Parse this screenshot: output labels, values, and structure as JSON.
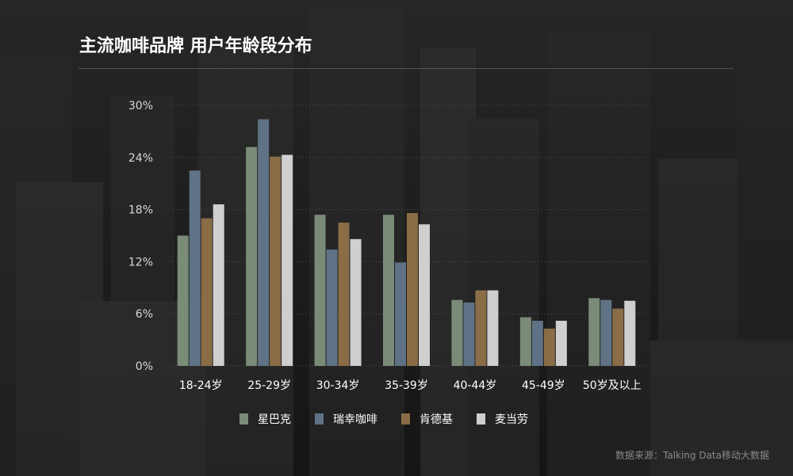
{
  "title": "主流咖啡品牌 用户年龄段分布",
  "source": "数据来源：Talking Data移动大数据",
  "colors": {
    "background": "#1b1b1b",
    "grid": "#555555"
  },
  "chart_data": {
    "type": "bar",
    "categories": [
      "18-24岁",
      "25-29岁",
      "30-34岁",
      "35-39岁",
      "40-44岁",
      "45-49岁",
      "50岁及以上"
    ],
    "y_ticks": [
      "0%",
      "6%",
      "12%",
      "18%",
      "24%",
      "30%"
    ],
    "ylim": [
      0,
      30
    ],
    "legend_position": "bottom",
    "series": [
      {
        "name": "星巴克",
        "color": "#7a8c78",
        "values": [
          15.0,
          25.2,
          17.4,
          17.4,
          7.6,
          5.6,
          7.8
        ]
      },
      {
        "name": "瑞幸咖啡",
        "color": "#5f7286",
        "values": [
          22.5,
          28.4,
          13.4,
          11.9,
          7.3,
          5.2,
          7.6
        ]
      },
      {
        "name": "肯德基",
        "color": "#8a6c46",
        "values": [
          17.0,
          24.1,
          16.5,
          17.6,
          8.7,
          4.3,
          6.6
        ]
      },
      {
        "name": "麦当劳",
        "color": "#cfcfcf",
        "values": [
          18.6,
          24.3,
          14.6,
          16.3,
          8.7,
          5.2,
          7.5
        ]
      }
    ]
  }
}
